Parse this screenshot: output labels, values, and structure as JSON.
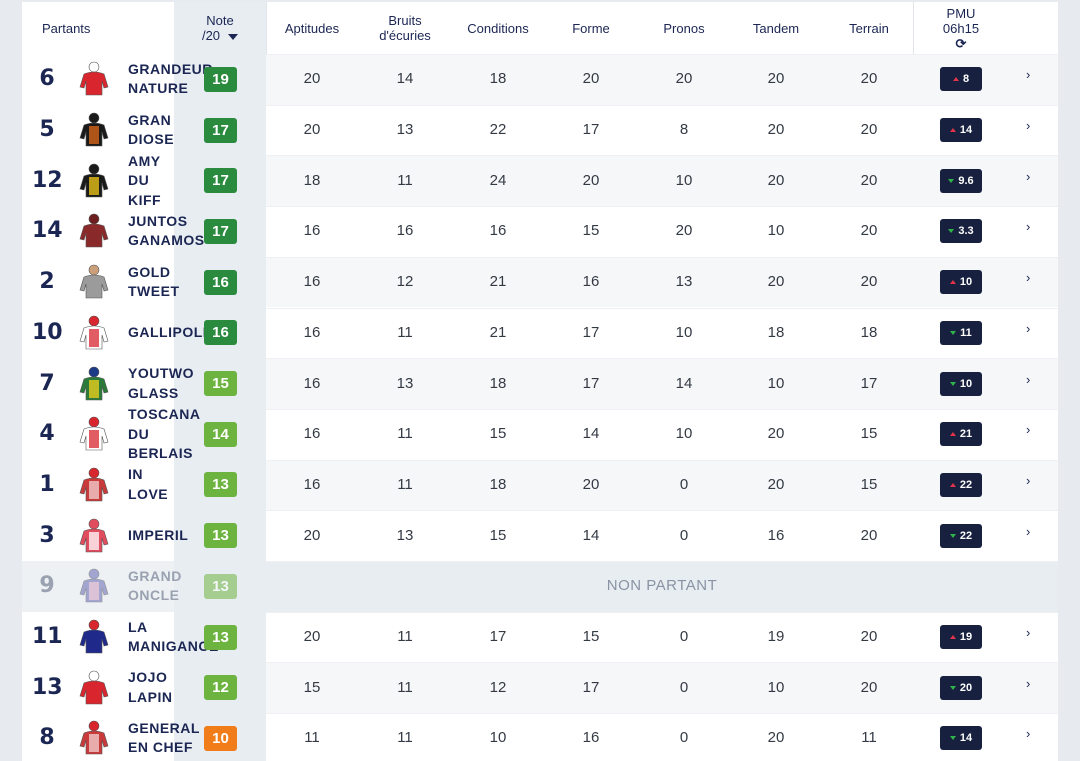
{
  "header": {
    "partants": "Partants",
    "note_line1": "Note",
    "note_line2": "/20",
    "aptitudes": "Aptitudes",
    "bruits_line1": "Bruits",
    "bruits_line2": "d'écuries",
    "conditions": "Conditions",
    "forme": "Forme",
    "pronos": "Pronos",
    "tandem": "Tandem",
    "terrain": "Terrain",
    "pmu_line1": "PMU",
    "pmu_line2": "06h15",
    "refresh_icon": "⟳"
  },
  "colors": {
    "navy": "#1b2653",
    "note_dark_green": "#2a8a3e",
    "note_green": "#6db33f",
    "note_orange": "#f07d1a",
    "pmu_bg": "#17213f",
    "trend_up": "#e0344a",
    "trend_down": "#2fb34a"
  },
  "non_partant_label": "NON PARTANT",
  "rows": [
    {
      "num": "6",
      "name": "GRANDEUR\nNATURE",
      "note": "19",
      "note_color": "#2a8a3e",
      "aptitudes": "20",
      "bruits": "14",
      "conditions": "18",
      "forme": "20",
      "pronos": "20",
      "tandem": "20",
      "terrain": "20",
      "pmu": "8",
      "trend": "up",
      "silk": "red"
    },
    {
      "num": "5",
      "name": "GRAN\nDIOSE",
      "note": "17",
      "note_color": "#2a8a3e",
      "aptitudes": "20",
      "bruits": "13",
      "conditions": "22",
      "forme": "17",
      "pronos": "8",
      "tandem": "20",
      "terrain": "20",
      "pmu": "14",
      "trend": "up",
      "silk": "black-orange"
    },
    {
      "num": "12",
      "name": "AMY\nDU\nKIFF",
      "note": "17",
      "note_color": "#2a8a3e",
      "aptitudes": "18",
      "bruits": "11",
      "conditions": "24",
      "forme": "20",
      "pronos": "10",
      "tandem": "20",
      "terrain": "20",
      "pmu": "9.6",
      "trend": "down",
      "silk": "black-yellow"
    },
    {
      "num": "14",
      "name": "JUNTOS\nGANAMOS",
      "note": "17",
      "note_color": "#2a8a3e",
      "aptitudes": "16",
      "bruits": "16",
      "conditions": "16",
      "forme": "15",
      "pronos": "20",
      "tandem": "10",
      "terrain": "20",
      "pmu": "3.3",
      "trend": "down",
      "silk": "maroon"
    },
    {
      "num": "2",
      "name": "GOLD\nTWEET",
      "note": "16",
      "note_color": "#2a8a3e",
      "aptitudes": "16",
      "bruits": "12",
      "conditions": "21",
      "forme": "16",
      "pronos": "13",
      "tandem": "20",
      "terrain": "20",
      "pmu": "10",
      "trend": "up",
      "silk": "grey"
    },
    {
      "num": "10",
      "name": "GALLIPOLI",
      "note": "16",
      "note_color": "#2a8a3e",
      "aptitudes": "16",
      "bruits": "11",
      "conditions": "21",
      "forme": "17",
      "pronos": "10",
      "tandem": "18",
      "terrain": "18",
      "pmu": "11",
      "trend": "down",
      "silk": "white-red"
    },
    {
      "num": "7",
      "name": "YOUTWO\nGLASS",
      "note": "15",
      "note_color": "#6db33f",
      "aptitudes": "16",
      "bruits": "13",
      "conditions": "18",
      "forme": "17",
      "pronos": "14",
      "tandem": "10",
      "terrain": "17",
      "pmu": "10",
      "trend": "down",
      "silk": "green-star"
    },
    {
      "num": "4",
      "name": "TOSCANA\nDU\nBERLAIS",
      "note": "14",
      "note_color": "#6db33f",
      "aptitudes": "16",
      "bruits": "11",
      "conditions": "15",
      "forme": "14",
      "pronos": "10",
      "tandem": "20",
      "terrain": "15",
      "pmu": "21",
      "trend": "up",
      "silk": "white-star"
    },
    {
      "num": "1",
      "name": "IN\nLOVE",
      "note": "13",
      "note_color": "#6db33f",
      "aptitudes": "16",
      "bruits": "11",
      "conditions": "18",
      "forme": "20",
      "pronos": "0",
      "tandem": "20",
      "terrain": "15",
      "pmu": "22",
      "trend": "up",
      "silk": "red-hoops"
    },
    {
      "num": "3",
      "name": "IMPERIL",
      "note": "13",
      "note_color": "#6db33f",
      "aptitudes": "20",
      "bruits": "13",
      "conditions": "15",
      "forme": "14",
      "pronos": "0",
      "tandem": "16",
      "terrain": "20",
      "pmu": "22",
      "trend": "down",
      "silk": "red-stripes"
    },
    {
      "num": "9",
      "name": "GRAND\nONCLE",
      "note": "13",
      "note_color": "#6db33f",
      "non_partant": true,
      "silk": "blue-pink"
    },
    {
      "num": "11",
      "name": "LA\nMANIGANCE",
      "note": "13",
      "note_color": "#6db33f",
      "aptitudes": "20",
      "bruits": "11",
      "conditions": "17",
      "forme": "15",
      "pronos": "0",
      "tandem": "19",
      "terrain": "20",
      "pmu": "19",
      "trend": "up",
      "silk": "blue"
    },
    {
      "num": "13",
      "name": "JOJO\nLAPIN",
      "note": "12",
      "note_color": "#6db33f",
      "aptitudes": "15",
      "bruits": "11",
      "conditions": "12",
      "forme": "17",
      "pronos": "0",
      "tandem": "10",
      "terrain": "20",
      "pmu": "20",
      "trend": "down",
      "silk": "red"
    },
    {
      "num": "8",
      "name": "GENERAL\nEN CHEF",
      "note": "10",
      "note_color": "#f07d1a",
      "aptitudes": "11",
      "bruits": "11",
      "conditions": "10",
      "forme": "16",
      "pronos": "0",
      "tandem": "20",
      "terrain": "11",
      "pmu": "14",
      "trend": "down",
      "silk": "red-hoops"
    }
  ]
}
